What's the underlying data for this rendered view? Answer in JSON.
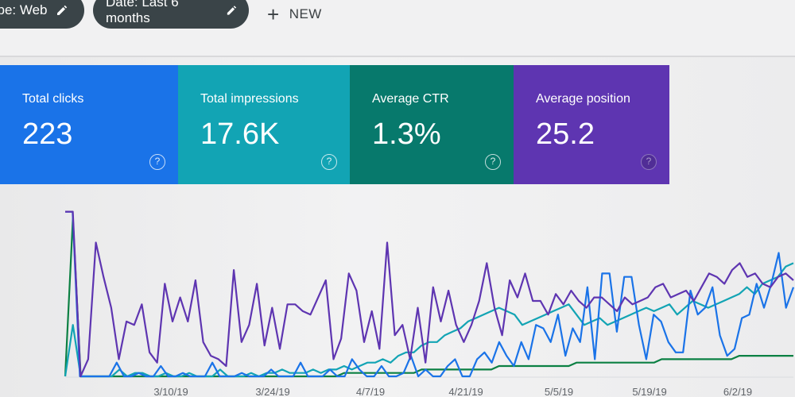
{
  "filters": {
    "type_chip": "ype: Web",
    "date_chip": "Date: Last 6 months",
    "new_label": "NEW",
    "edit_icon": "pencil-icon",
    "add_icon": "plus-icon"
  },
  "metrics": [
    {
      "label": "Total clicks",
      "value": "223",
      "color": "#1a73e8"
    },
    {
      "label": "Total impressions",
      "value": "17.6K",
      "color": "#12a4b4"
    },
    {
      "label": "Average CTR",
      "value": "1.3%",
      "color": "#07796c"
    },
    {
      "label": "Average position",
      "value": "25.2",
      "color": "#5e35b1"
    }
  ],
  "help_icon": "help-circle-icon",
  "chart_data": {
    "type": "line",
    "x_tick_labels": [
      "3/10/19",
      "3/24/19",
      "4/7/19",
      "4/21/19",
      "5/5/19",
      "5/19/19",
      "6/2/19"
    ],
    "grid": false,
    "legend": "none",
    "series": [
      {
        "color": "#5e35b1",
        "values": [
          96,
          96,
          0,
          10,
          78,
          58,
          40,
          10,
          32,
          30,
          42,
          14,
          8,
          54,
          32,
          46,
          32,
          56,
          20,
          12,
          10,
          6,
          62,
          20,
          30,
          54,
          18,
          40,
          16,
          42,
          42,
          38,
          36,
          46,
          56,
          10,
          22,
          60,
          50,
          20,
          38,
          16,
          78,
          24,
          30,
          10,
          40,
          8,
          52,
          32,
          50,
          30,
          20,
          30,
          44,
          66,
          40,
          24,
          56,
          46,
          60,
          44,
          44,
          36,
          48,
          42,
          50,
          44,
          40,
          46,
          46,
          42,
          38,
          46,
          42,
          44,
          46,
          52,
          54,
          46,
          48,
          50,
          44,
          52,
          60,
          58,
          54,
          62,
          66,
          58,
          60,
          54,
          52,
          58,
          60,
          56
        ]
      },
      {
        "color": "#1a73e8",
        "values": [
          96,
          96,
          0,
          0,
          0,
          0,
          0,
          8,
          0,
          0,
          2,
          0,
          0,
          6,
          0,
          0,
          2,
          0,
          0,
          0,
          8,
          0,
          0,
          0,
          2,
          0,
          0,
          0,
          4,
          0,
          0,
          0,
          8,
          0,
          0,
          0,
          4,
          0,
          0,
          10,
          4,
          0,
          0,
          6,
          0,
          0,
          2,
          12,
          0,
          4,
          0,
          0,
          6,
          10,
          0,
          0,
          10,
          14,
          8,
          20,
          12,
          6,
          20,
          10,
          30,
          28,
          20,
          36,
          12,
          28,
          20,
          52,
          10,
          60,
          60,
          26,
          58,
          58,
          30,
          10,
          36,
          32,
          20,
          14,
          14,
          50,
          36,
          40,
          52,
          24,
          12,
          16,
          34,
          36,
          54,
          40,
          54,
          72,
          40,
          52
        ]
      },
      {
        "color": "#12a4b4",
        "values": [
          0,
          30,
          0,
          0,
          0,
          0,
          0,
          4,
          0,
          2,
          2,
          0,
          0,
          2,
          0,
          0,
          2,
          0,
          0,
          0,
          4,
          0,
          0,
          0,
          2,
          0,
          2,
          2,
          4,
          2,
          2,
          2,
          4,
          2,
          4,
          4,
          6,
          4,
          6,
          8,
          8,
          10,
          8,
          12,
          14,
          14,
          18,
          20,
          20,
          24,
          26,
          28,
          32,
          34,
          36,
          38,
          40,
          38,
          36,
          30,
          32,
          34,
          36,
          38,
          40,
          42,
          36,
          30,
          32,
          34,
          30,
          32,
          34,
          36,
          38,
          40,
          38,
          40,
          42,
          36,
          40,
          44,
          42,
          40,
          42,
          44,
          46,
          48,
          52,
          48,
          54,
          56,
          58,
          64,
          66
        ]
      },
      {
        "color": "#0b8043",
        "values": [
          0,
          92,
          0,
          0,
          0,
          0,
          0,
          0,
          0,
          0,
          0,
          0,
          0,
          0,
          0,
          0,
          0,
          0,
          0,
          0,
          0,
          0,
          0,
          0,
          0,
          0,
          0,
          0,
          0,
          0,
          0,
          0,
          0,
          0,
          0,
          0,
          2,
          2,
          2,
          2,
          2,
          2,
          2,
          2,
          2,
          2,
          4,
          4,
          4,
          4,
          4,
          4,
          4,
          4,
          4,
          4,
          6,
          6,
          6,
          6,
          6,
          6,
          6,
          6,
          6,
          6,
          8,
          8,
          8,
          8,
          8,
          8,
          8,
          8,
          8,
          8,
          8,
          10,
          10,
          10,
          10,
          10,
          10,
          10,
          10,
          10,
          10,
          12,
          12,
          12,
          12,
          12,
          12,
          12,
          12
        ]
      }
    ]
  }
}
